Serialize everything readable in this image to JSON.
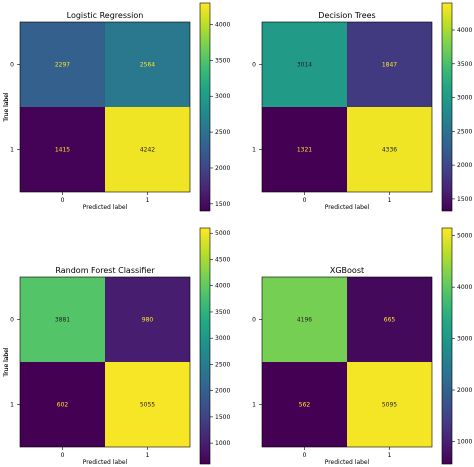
{
  "chart_data": [
    {
      "type": "heatmap",
      "title": "Logistic Regression",
      "xlabel": "Predicted label",
      "ylabel": "True label",
      "x_ticks": [
        "0",
        "1"
      ],
      "y_ticks": [
        "0",
        "1"
      ],
      "matrix": [
        [
          2297,
          2564
        ],
        [
          1415,
          4242
        ]
      ],
      "colorbar": {
        "colormap": "viridis",
        "range": [
          1400,
          4300
        ],
        "ticks": [
          1500,
          2000,
          2500,
          3000,
          3500,
          4000
        ]
      }
    },
    {
      "type": "heatmap",
      "title": "Decision Trees",
      "xlabel": "Predicted label",
      "ylabel": "True label",
      "x_ticks": [
        "0",
        "1"
      ],
      "y_ticks": [
        "0",
        "1"
      ],
      "matrix": [
        [
          3014,
          1847
        ],
        [
          1321,
          4336
        ]
      ],
      "colorbar": {
        "colormap": "viridis",
        "range": [
          1321,
          4400
        ],
        "ticks": [
          1500,
          2000,
          2500,
          3000,
          3500,
          4000
        ]
      }
    },
    {
      "type": "heatmap",
      "title": "Random Forest Classifier",
      "xlabel": "Predicted label",
      "ylabel": "True label",
      "x_ticks": [
        "0",
        "1"
      ],
      "y_ticks": [
        "0",
        "1"
      ],
      "matrix": [
        [
          3881,
          980
        ],
        [
          602,
          5055
        ]
      ],
      "colorbar": {
        "colormap": "viridis",
        "range": [
          602,
          5100
        ],
        "ticks": [
          1000,
          1500,
          2000,
          2500,
          3000,
          3500,
          4000,
          4500,
          5000
        ]
      }
    },
    {
      "type": "heatmap",
      "title": "XGBoost",
      "xlabel": "Predicted label",
      "ylabel": "True label",
      "x_ticks": [
        "0",
        "1"
      ],
      "y_ticks": [
        "0",
        "1"
      ],
      "matrix": [
        [
          4196,
          665
        ],
        [
          562,
          5095
        ]
      ],
      "colorbar": {
        "colormap": "viridis",
        "range": [
          562,
          5150
        ],
        "ticks": [
          1000,
          2000,
          3000,
          4000,
          5000
        ]
      }
    }
  ]
}
